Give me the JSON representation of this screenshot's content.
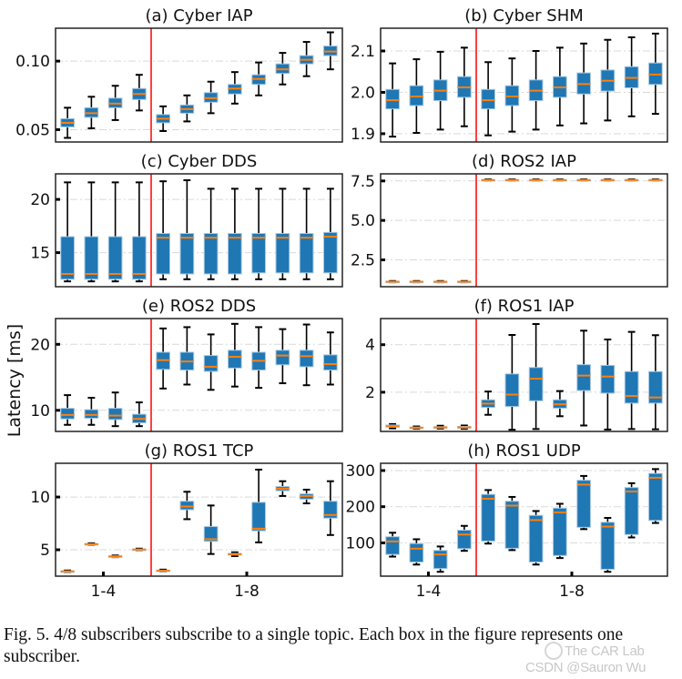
{
  "figure": {
    "ylabel": "Latency [ms]",
    "group_labels": [
      "1-4",
      "1-8"
    ],
    "colors": {
      "box": "#1f77b4",
      "box_edge": "#a6c8e4",
      "median": "#ff7f0e",
      "whisker": "#000000",
      "divider": "#ff0000",
      "grid": "#d9d9d9"
    }
  },
  "caption": {
    "text": "Fig. 5.  4/8 subscribers subscribe to a single topic. Each box in the figure represents one subscriber."
  },
  "watermark": {
    "line1": "The CAR Lab",
    "line2": "CSDN @Sauron Wu"
  },
  "chart_data": [
    {
      "type": "box",
      "title": "(a) Cyber IAP",
      "ylim": [
        0.041,
        0.124
      ],
      "yticks": [
        0.05,
        0.1
      ],
      "ytick_labels": [
        "0.05",
        "0.10"
      ],
      "grid": true,
      "groups": [
        "1-4",
        "1-8"
      ],
      "boxes": [
        {
          "group": "1-4",
          "whislo": 0.044,
          "q1": 0.052,
          "med": 0.055,
          "q3": 0.058,
          "whishi": 0.066
        },
        {
          "group": "1-4",
          "whislo": 0.051,
          "q1": 0.059,
          "med": 0.062,
          "q3": 0.066,
          "whishi": 0.074
        },
        {
          "group": "1-4",
          "whislo": 0.057,
          "q1": 0.066,
          "med": 0.069,
          "q3": 0.073,
          "whishi": 0.082
        },
        {
          "group": "1-4",
          "whislo": 0.064,
          "q1": 0.072,
          "med": 0.076,
          "q3": 0.08,
          "whishi": 0.09
        },
        {
          "group": "1-8",
          "whislo": 0.049,
          "q1": 0.055,
          "med": 0.058,
          "q3": 0.061,
          "whishi": 0.067
        },
        {
          "group": "1-8",
          "whislo": 0.056,
          "q1": 0.062,
          "med": 0.065,
          "q3": 0.068,
          "whishi": 0.075
        },
        {
          "group": "1-8",
          "whislo": 0.062,
          "q1": 0.07,
          "med": 0.073,
          "q3": 0.077,
          "whishi": 0.085
        },
        {
          "group": "1-8",
          "whislo": 0.069,
          "q1": 0.076,
          "med": 0.08,
          "q3": 0.083,
          "whishi": 0.092
        },
        {
          "group": "1-8",
          "whislo": 0.075,
          "q1": 0.083,
          "med": 0.087,
          "q3": 0.09,
          "whishi": 0.099
        },
        {
          "group": "1-8",
          "whislo": 0.083,
          "q1": 0.091,
          "med": 0.094,
          "q3": 0.098,
          "whishi": 0.106
        },
        {
          "group": "1-8",
          "whislo": 0.089,
          "q1": 0.098,
          "med": 0.101,
          "q3": 0.104,
          "whishi": 0.114
        },
        {
          "group": "1-8",
          "whislo": 0.094,
          "q1": 0.104,
          "med": 0.107,
          "q3": 0.111,
          "whishi": 0.121
        }
      ]
    },
    {
      "type": "box",
      "title": "(b) Cyber SHM",
      "ylim": [
        1.88,
        2.155
      ],
      "yticks": [
        1.9,
        2.0,
        2.1
      ],
      "ytick_labels": [
        "1.9",
        "2.0",
        "2.1"
      ],
      "grid": true,
      "groups": [
        "1-4",
        "1-8"
      ],
      "boxes": [
        {
          "group": "1-4",
          "whislo": 1.893,
          "q1": 1.96,
          "med": 1.981,
          "q3": 2.007,
          "whishi": 2.07
        },
        {
          "group": "1-4",
          "whislo": 1.902,
          "q1": 1.968,
          "med": 1.99,
          "q3": 2.016,
          "whishi": 2.08
        },
        {
          "group": "1-4",
          "whislo": 1.91,
          "q1": 1.98,
          "med": 2.004,
          "q3": 2.03,
          "whishi": 2.098
        },
        {
          "group": "1-4",
          "whislo": 1.918,
          "q1": 1.988,
          "med": 2.012,
          "q3": 2.038,
          "whishi": 2.108
        },
        {
          "group": "1-8",
          "whislo": 1.896,
          "q1": 1.96,
          "med": 1.981,
          "q3": 2.007,
          "whishi": 2.073
        },
        {
          "group": "1-8",
          "whislo": 1.905,
          "q1": 1.968,
          "med": 1.99,
          "q3": 2.016,
          "whishi": 2.082
        },
        {
          "group": "1-8",
          "whislo": 1.91,
          "q1": 1.98,
          "med": 2.004,
          "q3": 2.03,
          "whishi": 2.1
        },
        {
          "group": "1-8",
          "whislo": 1.92,
          "q1": 1.988,
          "med": 2.012,
          "q3": 2.038,
          "whishi": 2.108
        },
        {
          "group": "1-8",
          "whislo": 1.925,
          "q1": 1.996,
          "med": 2.02,
          "q3": 2.047,
          "whishi": 2.118
        },
        {
          "group": "1-8",
          "whislo": 1.932,
          "q1": 2.003,
          "med": 2.028,
          "q3": 2.054,
          "whishi": 2.127
        },
        {
          "group": "1-8",
          "whislo": 1.942,
          "q1": 2.011,
          "med": 2.035,
          "q3": 2.062,
          "whishi": 2.133
        },
        {
          "group": "1-8",
          "whislo": 1.948,
          "q1": 2.019,
          "med": 2.043,
          "q3": 2.071,
          "whishi": 2.142
        }
      ]
    },
    {
      "type": "box",
      "title": "(c) Cyber DDS",
      "ylim": [
        11.8,
        22.4
      ],
      "yticks": [
        15,
        20
      ],
      "ytick_labels": [
        "15",
        "20"
      ],
      "grid": true,
      "groups": [
        "1-4",
        "1-8"
      ],
      "boxes": [
        {
          "group": "1-4",
          "whislo": 12.3,
          "q1": 12.5,
          "med": 13.0,
          "q3": 16.5,
          "whishi": 21.6
        },
        {
          "group": "1-4",
          "whislo": 12.3,
          "q1": 12.5,
          "med": 13.0,
          "q3": 16.5,
          "whishi": 21.6
        },
        {
          "group": "1-4",
          "whislo": 12.3,
          "q1": 12.5,
          "med": 13.0,
          "q3": 16.5,
          "whishi": 21.6
        },
        {
          "group": "1-4",
          "whislo": 12.3,
          "q1": 12.5,
          "med": 13.0,
          "q3": 16.5,
          "whishi": 21.6
        },
        {
          "group": "1-8",
          "whislo": 12.5,
          "q1": 13.0,
          "med": 16.4,
          "q3": 16.8,
          "whishi": 21.7
        },
        {
          "group": "1-8",
          "whislo": 12.5,
          "q1": 13.0,
          "med": 16.4,
          "q3": 16.8,
          "whishi": 21.8
        },
        {
          "group": "1-8",
          "whislo": 12.5,
          "q1": 13.0,
          "med": 16.4,
          "q3": 16.8,
          "whishi": 21.0
        },
        {
          "group": "1-8",
          "whislo": 12.5,
          "q1": 13.0,
          "med": 16.4,
          "q3": 16.8,
          "whishi": 21.0
        },
        {
          "group": "1-8",
          "whislo": 12.5,
          "q1": 13.1,
          "med": 16.4,
          "q3": 16.8,
          "whishi": 21.0
        },
        {
          "group": "1-8",
          "whislo": 12.5,
          "q1": 13.1,
          "med": 16.4,
          "q3": 16.8,
          "whishi": 21.0
        },
        {
          "group": "1-8",
          "whislo": 12.5,
          "q1": 13.1,
          "med": 16.4,
          "q3": 16.8,
          "whishi": 21.0
        },
        {
          "group": "1-8",
          "whislo": 12.5,
          "q1": 13.1,
          "med": 16.5,
          "q3": 16.9,
          "whishi": 21.0
        }
      ]
    },
    {
      "type": "box",
      "title": "(d) ROS2 IAP",
      "ylim": [
        0.8,
        7.95
      ],
      "yticks": [
        2.5,
        5.0,
        7.5
      ],
      "ytick_labels": [
        "2.5",
        "5.0",
        "7.5"
      ],
      "grid": true,
      "groups": [
        "1-4",
        "1-8"
      ],
      "boxes": [
        {
          "group": "1-4",
          "whislo": 1.08,
          "q1": 1.1,
          "med": 1.12,
          "q3": 1.14,
          "whishi": 1.16
        },
        {
          "group": "1-4",
          "whislo": 1.08,
          "q1": 1.1,
          "med": 1.12,
          "q3": 1.14,
          "whishi": 1.16
        },
        {
          "group": "1-4",
          "whislo": 1.08,
          "q1": 1.1,
          "med": 1.12,
          "q3": 1.14,
          "whishi": 1.16
        },
        {
          "group": "1-4",
          "whislo": 1.08,
          "q1": 1.1,
          "med": 1.12,
          "q3": 1.14,
          "whishi": 1.16
        },
        {
          "group": "1-8",
          "whislo": 7.52,
          "q1": 7.54,
          "med": 7.56,
          "q3": 7.58,
          "whishi": 7.6
        },
        {
          "group": "1-8",
          "whislo": 7.52,
          "q1": 7.54,
          "med": 7.56,
          "q3": 7.58,
          "whishi": 7.6
        },
        {
          "group": "1-8",
          "whislo": 7.52,
          "q1": 7.54,
          "med": 7.56,
          "q3": 7.58,
          "whishi": 7.6
        },
        {
          "group": "1-8",
          "whislo": 7.52,
          "q1": 7.54,
          "med": 7.56,
          "q3": 7.58,
          "whishi": 7.6
        },
        {
          "group": "1-8",
          "whislo": 7.52,
          "q1": 7.54,
          "med": 7.56,
          "q3": 7.58,
          "whishi": 7.6
        },
        {
          "group": "1-8",
          "whislo": 7.52,
          "q1": 7.54,
          "med": 7.56,
          "q3": 7.58,
          "whishi": 7.6
        },
        {
          "group": "1-8",
          "whislo": 7.52,
          "q1": 7.54,
          "med": 7.56,
          "q3": 7.58,
          "whishi": 7.6
        },
        {
          "group": "1-8",
          "whislo": 7.52,
          "q1": 7.54,
          "med": 7.56,
          "q3": 7.58,
          "whishi": 7.6
        }
      ]
    },
    {
      "type": "box",
      "title": "(e) ROS2 DDS",
      "ylim": [
        6.8,
        23.9
      ],
      "yticks": [
        10,
        20
      ],
      "ytick_labels": [
        "10",
        "20"
      ],
      "grid": true,
      "groups": [
        "1-4",
        "1-8"
      ],
      "boxes": [
        {
          "group": "1-4",
          "whislo": 7.8,
          "q1": 8.7,
          "med": 9.3,
          "q3": 10.3,
          "whishi": 12.3
        },
        {
          "group": "1-4",
          "whislo": 7.8,
          "q1": 8.8,
          "med": 9.3,
          "q3": 10.1,
          "whishi": 11.9
        },
        {
          "group": "1-4",
          "whislo": 7.6,
          "q1": 8.6,
          "med": 9.2,
          "q3": 10.3,
          "whishi": 12.7
        },
        {
          "group": "1-4",
          "whislo": 7.6,
          "q1": 8.1,
          "med": 8.7,
          "q3": 9.4,
          "whishi": 11.2
        },
        {
          "group": "1-8",
          "whislo": 13.3,
          "q1": 16.2,
          "med": 17.6,
          "q3": 18.8,
          "whishi": 22.4
        },
        {
          "group": "1-8",
          "whislo": 13.9,
          "q1": 16.1,
          "med": 17.4,
          "q3": 18.8,
          "whishi": 22.6
        },
        {
          "group": "1-8",
          "whislo": 13.1,
          "q1": 15.9,
          "med": 16.6,
          "q3": 18.3,
          "whishi": 21.5
        },
        {
          "group": "1-8",
          "whislo": 13.6,
          "q1": 16.4,
          "med": 18.1,
          "q3": 19.1,
          "whishi": 23.1
        },
        {
          "group": "1-8",
          "whislo": 13.4,
          "q1": 16.1,
          "med": 17.5,
          "q3": 18.8,
          "whishi": 22.6
        },
        {
          "group": "1-8",
          "whislo": 14.1,
          "q1": 16.9,
          "med": 18.3,
          "q3": 19.1,
          "whishi": 22.3
        },
        {
          "group": "1-8",
          "whislo": 13.8,
          "q1": 16.6,
          "med": 18.2,
          "q3": 19.1,
          "whishi": 23.0
        },
        {
          "group": "1-8",
          "whislo": 13.9,
          "q1": 16.1,
          "med": 17.0,
          "q3": 18.4,
          "whishi": 21.8
        }
      ]
    },
    {
      "type": "box",
      "title": "(f) ROS1 IAP",
      "ylim": [
        0.35,
        5.1
      ],
      "yticks": [
        2,
        4
      ],
      "ytick_labels": [
        "2",
        "4"
      ],
      "grid": true,
      "groups": [
        "1-4",
        "1-8"
      ],
      "boxes": [
        {
          "group": "1-4",
          "whislo": 0.48,
          "q1": 0.53,
          "med": 0.57,
          "q3": 0.62,
          "whishi": 0.66
        },
        {
          "group": "1-4",
          "whislo": 0.46,
          "q1": 0.49,
          "med": 0.51,
          "q3": 0.53,
          "whishi": 0.56
        },
        {
          "group": "1-4",
          "whislo": 0.47,
          "q1": 0.5,
          "med": 0.52,
          "q3": 0.55,
          "whishi": 0.59
        },
        {
          "group": "1-4",
          "whislo": 0.46,
          "q1": 0.49,
          "med": 0.52,
          "q3": 0.56,
          "whishi": 0.6
        },
        {
          "group": "1-8",
          "whislo": 1.05,
          "q1": 1.36,
          "med": 1.52,
          "q3": 1.68,
          "whishi": 2.03
        },
        {
          "group": "1-8",
          "whislo": 0.42,
          "q1": 1.4,
          "med": 1.9,
          "q3": 2.77,
          "whishi": 4.41
        },
        {
          "group": "1-8",
          "whislo": 0.45,
          "q1": 1.64,
          "med": 2.57,
          "q3": 3.04,
          "whishi": 4.87
        },
        {
          "group": "1-8",
          "whislo": 0.99,
          "q1": 1.33,
          "med": 1.49,
          "q3": 1.68,
          "whishi": 2.05
        },
        {
          "group": "1-8",
          "whislo": 0.6,
          "q1": 2.07,
          "med": 2.7,
          "q3": 3.16,
          "whishi": 4.59
        },
        {
          "group": "1-8",
          "whislo": 0.43,
          "q1": 1.96,
          "med": 2.66,
          "q3": 3.13,
          "whishi": 4.22
        },
        {
          "group": "1-8",
          "whislo": 0.45,
          "q1": 1.54,
          "med": 1.84,
          "q3": 2.87,
          "whishi": 4.54
        },
        {
          "group": "1-8",
          "whislo": 0.44,
          "q1": 1.54,
          "med": 1.78,
          "q3": 2.87,
          "whishi": 4.4
        }
      ]
    },
    {
      "type": "box",
      "title": "(g) ROS1 TCP",
      "ylim": [
        2.5,
        13.2
      ],
      "yticks": [
        5,
        10
      ],
      "ytick_labels": [
        "5",
        "10"
      ],
      "grid": true,
      "groups": [
        "1-4",
        "1-8"
      ],
      "boxes": [
        {
          "group": "1-4",
          "whislo": 2.88,
          "q1": 2.93,
          "med": 2.96,
          "q3": 2.99,
          "whishi": 3.04
        },
        {
          "group": "1-4",
          "whislo": 5.46,
          "q1": 5.51,
          "med": 5.54,
          "q3": 5.57,
          "whishi": 5.62
        },
        {
          "group": "1-4",
          "whislo": 4.3,
          "q1": 4.35,
          "med": 4.38,
          "q3": 4.41,
          "whishi": 4.46
        },
        {
          "group": "1-4",
          "whislo": 4.95,
          "q1": 5.0,
          "med": 5.03,
          "q3": 5.06,
          "whishi": 5.11
        },
        {
          "group": "1-8",
          "whislo": 2.95,
          "q1": 3.0,
          "med": 3.03,
          "q3": 3.06,
          "whishi": 3.12
        },
        {
          "group": "1-8",
          "whislo": 7.9,
          "q1": 8.8,
          "med": 9.1,
          "q3": 9.6,
          "whishi": 10.5
        },
        {
          "group": "1-8",
          "whislo": 4.6,
          "q1": 5.8,
          "med": 6.0,
          "q3": 7.2,
          "whishi": 9.2
        },
        {
          "group": "1-8",
          "whislo": 4.4,
          "q1": 4.5,
          "med": 4.58,
          "q3": 4.66,
          "whishi": 4.76
        },
        {
          "group": "1-8",
          "whislo": 5.7,
          "q1": 6.8,
          "med": 7.0,
          "q3": 9.5,
          "whishi": 12.6
        },
        {
          "group": "1-8",
          "whislo": 10.1,
          "q1": 10.6,
          "med": 10.8,
          "q3": 11.0,
          "whishi": 11.5
        },
        {
          "group": "1-8",
          "whislo": 9.4,
          "q1": 9.8,
          "med": 10.1,
          "q3": 10.3,
          "whishi": 10.7
        },
        {
          "group": "1-8",
          "whislo": 6.4,
          "q1": 8.0,
          "med": 8.3,
          "q3": 9.6,
          "whishi": 11.5
        }
      ]
    },
    {
      "type": "box",
      "title": "(h) ROS1 UDP",
      "ylim": [
        8,
        320
      ],
      "yticks": [
        100,
        200,
        300
      ],
      "ytick_labels": [
        "100",
        "200",
        "300"
      ],
      "grid": true,
      "groups": [
        "1-4",
        "1-8"
      ],
      "boxes": [
        {
          "group": "1-4",
          "whislo": 62,
          "q1": 68,
          "med": 104,
          "q3": 117,
          "whishi": 128
        },
        {
          "group": "1-4",
          "whislo": 40,
          "q1": 47,
          "med": 84,
          "q3": 98,
          "whishi": 110
        },
        {
          "group": "1-4",
          "whislo": 20,
          "q1": 29,
          "med": 68,
          "q3": 79,
          "whishi": 90
        },
        {
          "group": "1-4",
          "whislo": 78,
          "q1": 84,
          "med": 123,
          "q3": 135,
          "whishi": 147
        },
        {
          "group": "1-8",
          "whislo": 98,
          "q1": 105,
          "med": 222,
          "q3": 234,
          "whishi": 246
        },
        {
          "group": "1-8",
          "whislo": 80,
          "q1": 85,
          "med": 203,
          "q3": 215,
          "whishi": 227
        },
        {
          "group": "1-8",
          "whislo": 40,
          "q1": 47,
          "med": 163,
          "q3": 176,
          "whishi": 188
        },
        {
          "group": "1-8",
          "whislo": 58,
          "q1": 65,
          "med": 184,
          "q3": 196,
          "whishi": 208
        },
        {
          "group": "1-8",
          "whislo": 138,
          "q1": 143,
          "med": 261,
          "q3": 273,
          "whishi": 285
        },
        {
          "group": "1-8",
          "whislo": 20,
          "q1": 27,
          "med": 145,
          "q3": 157,
          "whishi": 169
        },
        {
          "group": "1-8",
          "whislo": 115,
          "q1": 123,
          "med": 242,
          "q3": 253,
          "whishi": 265
        },
        {
          "group": "1-8",
          "whislo": 155,
          "q1": 162,
          "med": 280,
          "q3": 292,
          "whishi": 304
        }
      ]
    }
  ]
}
